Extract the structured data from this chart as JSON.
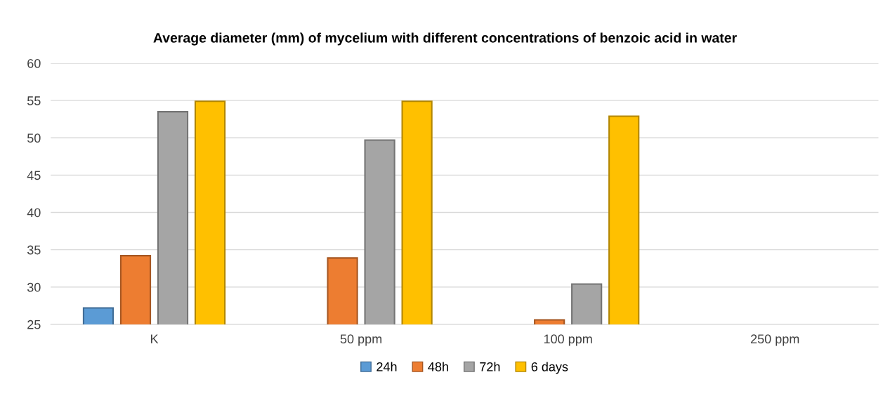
{
  "chart_data": {
    "type": "bar",
    "title": "Average diameter (mm) of mycelium with different concentrations of benzoic acid in water",
    "categories": [
      "K",
      "50 ppm",
      "100 ppm",
      "250 ppm"
    ],
    "series": [
      {
        "name": "24h",
        "color": "#5b9bd5",
        "values": [
          27.2,
          null,
          null,
          null
        ]
      },
      {
        "name": "48h",
        "color": "#ed7d31",
        "values": [
          34.2,
          33.9,
          25.6,
          null
        ]
      },
      {
        "name": "72h",
        "color": "#a5a5a5",
        "values": [
          53.5,
          49.7,
          30.4,
          null
        ]
      },
      {
        "name": "6 days",
        "color": "#ffc000",
        "values": [
          54.9,
          54.9,
          52.9,
          null
        ]
      }
    ],
    "ylim": [
      25,
      60
    ],
    "yticks": [
      25,
      30,
      35,
      40,
      45,
      50,
      55,
      60
    ],
    "grid": "y",
    "legend": "bottom"
  }
}
